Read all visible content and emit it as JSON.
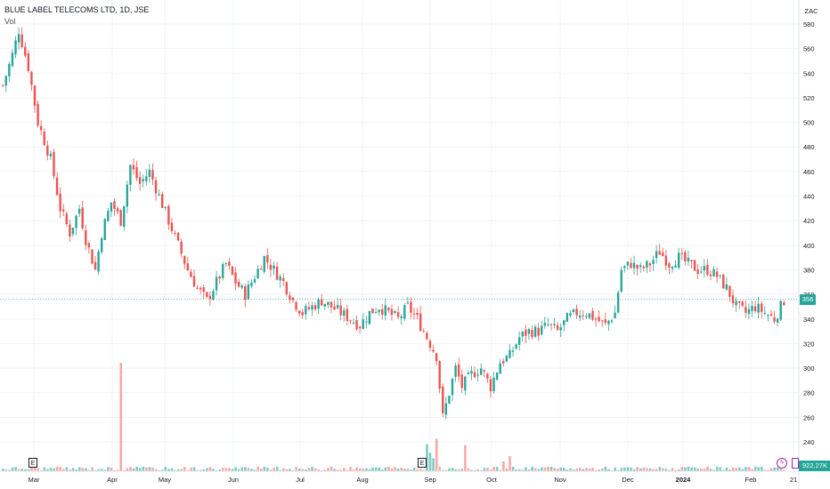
{
  "header": {
    "title": "BLUE LABEL TELECOMS LTD, 1D, JSE",
    "volume_label": "Vol",
    "currency": "ZAC"
  },
  "markers": {
    "earnings_label": "E",
    "flash_icon": "lightning-icon",
    "price_tag": "356",
    "volume_tag": "922.27K"
  },
  "colors": {
    "up": "#26a69a",
    "down": "#ef5350",
    "up_volume": "#80cbc4",
    "down_volume": "#f7a9a7",
    "grid": "#f0f3fa"
  },
  "chart_data": {
    "type": "candlestick",
    "title": "BLUE LABEL TELECOMS LTD, 1D, JSE",
    "currency": "ZAC",
    "y_ticks": [
      240,
      260,
      280,
      300,
      320,
      340,
      360,
      380,
      400,
      420,
      440,
      460,
      480,
      500,
      520,
      540,
      560,
      580
    ],
    "ylim": [
      225,
      590
    ],
    "x_ticks": [
      "Mar",
      "Apr",
      "May",
      "Jun",
      "Jul",
      "Aug",
      "Sep",
      "Oct",
      "Nov",
      "Dec",
      "2024",
      "Feb",
      "21"
    ],
    "last_price": 356,
    "last_volume": "922.27K",
    "grid": true,
    "price_path": [
      [
        0,
        530
      ],
      [
        3,
        555
      ],
      [
        5,
        575
      ],
      [
        8,
        545
      ],
      [
        11,
        500
      ],
      [
        15,
        470
      ],
      [
        18,
        430
      ],
      [
        21,
        410
      ],
      [
        24,
        430
      ],
      [
        26,
        405
      ],
      [
        29,
        380
      ],
      [
        31,
        410
      ],
      [
        34,
        435
      ],
      [
        37,
        420
      ],
      [
        40,
        465
      ],
      [
        43,
        450
      ],
      [
        46,
        460
      ],
      [
        49,
        440
      ],
      [
        52,
        420
      ],
      [
        55,
        400
      ],
      [
        58,
        380
      ],
      [
        61,
        365
      ],
      [
        64,
        355
      ],
      [
        67,
        370
      ],
      [
        70,
        385
      ],
      [
        73,
        370
      ],
      [
        76,
        360
      ],
      [
        79,
        375
      ],
      [
        82,
        390
      ],
      [
        85,
        380
      ],
      [
        88,
        370
      ],
      [
        91,
        355
      ],
      [
        94,
        345
      ],
      [
        97,
        350
      ],
      [
        100,
        355
      ],
      [
        103,
        350
      ],
      [
        106,
        345
      ],
      [
        109,
        340
      ],
      [
        112,
        335
      ],
      [
        115,
        345
      ],
      [
        118,
        350
      ],
      [
        121,
        345
      ],
      [
        124,
        340
      ],
      [
        127,
        350
      ],
      [
        130,
        340
      ],
      [
        133,
        325
      ],
      [
        136,
        310
      ],
      [
        138,
        260
      ],
      [
        140,
        280
      ],
      [
        142,
        300
      ],
      [
        144,
        285
      ],
      [
        147,
        295
      ],
      [
        150,
        300
      ],
      [
        153,
        285
      ],
      [
        156,
        305
      ],
      [
        159,
        310
      ],
      [
        162,
        325
      ],
      [
        165,
        330
      ],
      [
        168,
        330
      ],
      [
        171,
        335
      ],
      [
        174,
        330
      ],
      [
        177,
        340
      ],
      [
        180,
        345
      ],
      [
        183,
        345
      ],
      [
        186,
        340
      ],
      [
        189,
        335
      ],
      [
        192,
        345
      ],
      [
        194,
        380
      ],
      [
        197,
        385
      ],
      [
        200,
        380
      ],
      [
        203,
        385
      ],
      [
        206,
        395
      ],
      [
        209,
        385
      ],
      [
        212,
        390
      ],
      [
        215,
        385
      ],
      [
        218,
        380
      ],
      [
        221,
        380
      ],
      [
        224,
        375
      ],
      [
        227,
        365
      ],
      [
        230,
        350
      ],
      [
        233,
        345
      ],
      [
        236,
        350
      ],
      [
        239,
        345
      ],
      [
        242,
        340
      ],
      [
        245,
        355
      ]
    ],
    "big_volume_bars": [
      {
        "day": 37,
        "value": 10.0
      },
      {
        "day": 133,
        "value": 2.5
      },
      {
        "day": 134,
        "value": 1.7
      },
      {
        "day": 135,
        "value": 1.2
      },
      {
        "day": 136,
        "value": 3.0
      },
      {
        "day": 145,
        "value": 2.4
      },
      {
        "day": 157,
        "value": 0.9
      },
      {
        "day": 159,
        "value": 1.4
      }
    ]
  }
}
